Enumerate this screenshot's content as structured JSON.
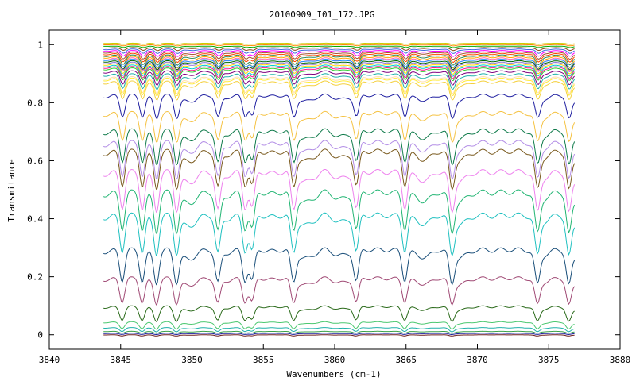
{
  "chart_data": {
    "type": "line",
    "title": "20100909_I01_172.JPG",
    "xlabel": "Wavenumbers (cm-1)",
    "ylabel": "Transmitance",
    "xlim": [
      3840,
      3880
    ],
    "ylim": [
      -0.05,
      1.05
    ],
    "x_ticks": [
      "3840",
      "3845",
      "3850",
      "3855",
      "3860",
      "3865",
      "3870",
      "3875",
      "3880"
    ],
    "y_ticks": [
      "0",
      "0.2",
      "0.4",
      "0.6",
      "0.8",
      "1"
    ],
    "x_range_data": [
      3843.8,
      3876.8
    ],
    "grid": false,
    "legend": "none",
    "absorption_lines_cm1": [
      3845.2,
      3846.6,
      3847.6,
      3849.0,
      3851.9,
      3853.8,
      3854.3,
      3857.2,
      3861.6,
      3865.0,
      3868.3,
      3874.3,
      3876.5
    ],
    "series": [
      {
        "baseline": 1.005,
        "color": "#cccc00"
      },
      {
        "baseline": 1.0,
        "color": "#ff8c00"
      },
      {
        "baseline": 0.995,
        "color": "#00aa00"
      },
      {
        "baseline": 0.99,
        "color": "#8b4513"
      },
      {
        "baseline": 0.985,
        "color": "#4169e1"
      },
      {
        "baseline": 0.98,
        "color": "#ff00ff"
      },
      {
        "baseline": 0.975,
        "color": "#a0522d"
      },
      {
        "baseline": 0.97,
        "color": "#ff4500"
      },
      {
        "baseline": 0.965,
        "color": "#2e8b57"
      },
      {
        "baseline": 0.96,
        "color": "#ffa500"
      },
      {
        "baseline": 0.955,
        "color": "#ff69b4"
      },
      {
        "baseline": 0.95,
        "color": "#1e90ff"
      },
      {
        "baseline": 0.945,
        "color": "#006400"
      },
      {
        "baseline": 0.94,
        "color": "#9370db"
      },
      {
        "baseline": 0.935,
        "color": "#ffd700"
      },
      {
        "baseline": 0.93,
        "color": "#00ced1"
      },
      {
        "baseline": 0.925,
        "color": "#ff1493"
      },
      {
        "baseline": 0.92,
        "color": "#32cd32"
      },
      {
        "baseline": 0.91,
        "color": "#800080"
      },
      {
        "baseline": 0.9,
        "color": "#20b2aa"
      },
      {
        "baseline": 0.89,
        "color": "#ffdead"
      },
      {
        "baseline": 0.885,
        "color": "#ffeb3b"
      },
      {
        "baseline": 0.875,
        "color": "#f4d03f"
      },
      {
        "baseline": 0.83,
        "color": "#1f1fa0"
      },
      {
        "baseline": 0.77,
        "color": "#f5c242"
      },
      {
        "baseline": 0.71,
        "color": "#0f7a4a"
      },
      {
        "baseline": 0.67,
        "color": "#b38ee6"
      },
      {
        "baseline": 0.64,
        "color": "#7a5a1e"
      },
      {
        "baseline": 0.57,
        "color": "#ee82ee"
      },
      {
        "baseline": 0.5,
        "color": "#22b573"
      },
      {
        "baseline": 0.42,
        "color": "#1fc0c0"
      },
      {
        "baseline": 0.3,
        "color": "#1a4f7a"
      },
      {
        "baseline": 0.2,
        "color": "#a04a75"
      },
      {
        "baseline": 0.1,
        "color": "#2a6a1a"
      },
      {
        "baseline": 0.045,
        "color": "#4cc870"
      },
      {
        "baseline": 0.025,
        "color": "#20b2aa"
      },
      {
        "baseline": 0.012,
        "color": "#3aa24a"
      },
      {
        "baseline": 0.005,
        "color": "#1f1fa0"
      },
      {
        "baseline": 0.0,
        "color": "#6a1b1b"
      }
    ]
  }
}
